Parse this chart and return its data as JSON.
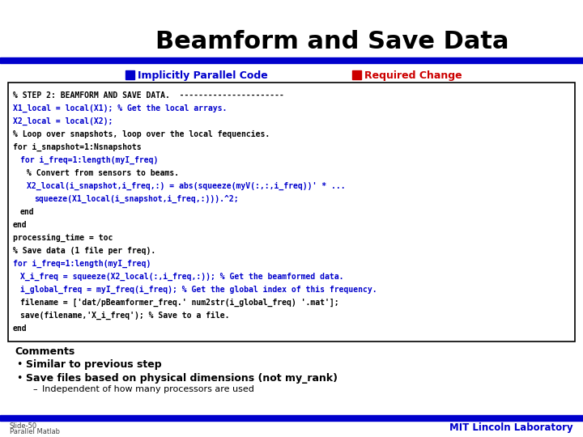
{
  "title": "Beamform and Save Data",
  "title_color": "#000000",
  "title_fontsize": 22,
  "bg_color": "#ffffff",
  "blue_bar_color": "#0000cc",
  "legend_blue": "Implicitly Parallel Code",
  "legend_red": "Required Change",
  "legend_red_color": "#cc0000",
  "legend_blue_color": "#0000cc",
  "code_lines": [
    {
      "text": "% STEP 2: BEAMFORM AND SAVE DATA.  ----------------------",
      "color": "#000000",
      "indent": 0
    },
    {
      "text": "X1_local = local(X1); % Get the local arrays.",
      "color": "#0000cc",
      "indent": 0
    },
    {
      "text": "X2_local = local(X2);",
      "color": "#0000cc",
      "indent": 0
    },
    {
      "text": "% Loop over snapshots, loop over the local fequencies.",
      "color": "#000000",
      "indent": 0
    },
    {
      "text": "for i_snapshot=1:Nsnapshots",
      "color": "#000000",
      "indent": 0
    },
    {
      "text": "for i_freq=1:length(myI_freq)",
      "color": "#0000cc",
      "indent": 2
    },
    {
      "text": "% Convert from sensors to beams.",
      "color": "#000000",
      "indent": 4
    },
    {
      "text": "X2_local(i_snapshot,i_freq,:) = abs(squeeze(myV(:,:,i_freq))' * ...",
      "color": "#0000cc",
      "indent": 4
    },
    {
      "text": "squeeze(X1_local(i_snapshot,i_freq,:))).^2;",
      "color": "#0000cc",
      "indent": 6
    },
    {
      "text": "end",
      "color": "#000000",
      "indent": 2
    },
    {
      "text": "end",
      "color": "#000000",
      "indent": 0
    },
    {
      "text": "processing_time = toc",
      "color": "#000000",
      "indent": 0
    },
    {
      "text": "% Save data (1 file per freq).",
      "color": "#000000",
      "indent": 0
    },
    {
      "text": "for i_freq=1:length(myI_freq)",
      "color": "#0000cc",
      "indent": 0
    },
    {
      "text": "X_i_freq = squeeze(X2_local(:,i_freq,:)); % Get the beamformed data.",
      "color": "#0000cc",
      "indent": 2
    },
    {
      "text": "i_global_freq = myI_freq(i_freq); % Get the global index of this frequency.",
      "color": "#0000cc",
      "indent": 2
    },
    {
      "text": "filename = ['dat/pBeamformer_freq.' num2str(i_global_freq) '.mat'];",
      "color": "#000000",
      "indent": 2
    },
    {
      "text": "save(filename,'X_i_freq'); % Save to a file.",
      "color": "#000000",
      "indent": 2
    },
    {
      "text": "end",
      "color": "#000000",
      "indent": 0
    }
  ],
  "comments_header": "Comments",
  "bullet1": "Similar to previous step",
  "bullet2": "Save files based on physical dimensions (not my_rank)",
  "sub_bullet": "Independent of how many processors are used",
  "footer_left1": "Slide-50",
  "footer_left2": "Parallel Matlab",
  "footer_right": "MIT Lincoln Laboratory",
  "code_fontsize": 7.0,
  "legend_fontsize": 9,
  "comments_fontsize": 9,
  "footer_fontsize": 6
}
